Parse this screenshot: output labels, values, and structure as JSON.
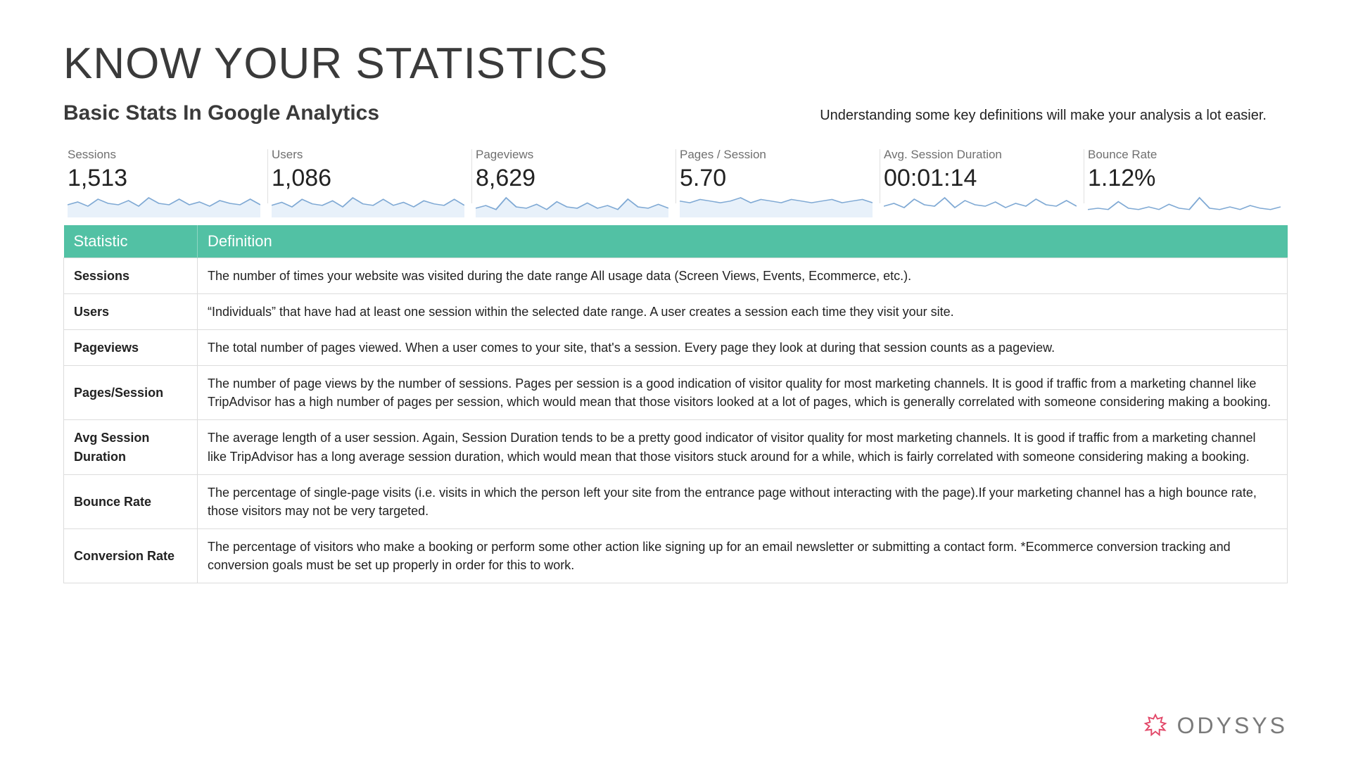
{
  "title": "KNOW YOUR STATISTICS",
  "subtitle": "Basic Stats In Google Analytics",
  "tagline": "Understanding some key definitions will make your analysis a lot easier.",
  "colors": {
    "table_header_bg": "#52c1a4",
    "table_header_text": "#ffffff",
    "border": "#dcdcdc",
    "spark_stroke": "#7fa9d4",
    "spark_fill": "#e8f1fa",
    "brand_icon": "#e24768",
    "brand_text": "#7a7a7a"
  },
  "metrics": [
    {
      "label": "Sessions",
      "value": "1,513",
      "spark": [
        8,
        10,
        7,
        12,
        9,
        8,
        11,
        7,
        13,
        9,
        8,
        12,
        8,
        10,
        7,
        11,
        9,
        8,
        12,
        8
      ],
      "fill": true
    },
    {
      "label": "Users",
      "value": "1,086",
      "spark": [
        7,
        9,
        6,
        11,
        8,
        7,
        10,
        6,
        12,
        8,
        7,
        11,
        7,
        9,
        6,
        10,
        8,
        7,
        11,
        7
      ],
      "fill": true
    },
    {
      "label": "Pageviews",
      "value": "8,629",
      "spark": [
        6,
        8,
        5,
        14,
        7,
        6,
        9,
        5,
        11,
        7,
        6,
        10,
        6,
        8,
        5,
        13,
        7,
        6,
        9,
        6
      ],
      "fill": true
    },
    {
      "label": "Pages / Session",
      "value": "5.70",
      "spark": [
        9,
        8,
        10,
        9,
        8,
        9,
        11,
        8,
        10,
        9,
        8,
        10,
        9,
        8,
        9,
        10,
        8,
        9,
        10,
        8
      ],
      "fill": true
    },
    {
      "label": "Avg. Session Duration",
      "value": "00:01:14",
      "spark": [
        7,
        9,
        6,
        12,
        8,
        7,
        13,
        6,
        11,
        8,
        7,
        10,
        6,
        9,
        7,
        12,
        8,
        7,
        11,
        7
      ],
      "fill": false
    },
    {
      "label": "Bounce Rate",
      "value": "1.12%",
      "spark": [
        5,
        6,
        5,
        11,
        6,
        5,
        7,
        5,
        9,
        6,
        5,
        14,
        6,
        5,
        7,
        5,
        8,
        6,
        5,
        7
      ],
      "fill": false
    }
  ],
  "table": {
    "headers": [
      "Statistic",
      "Definition"
    ],
    "rows": [
      {
        "stat": "Sessions",
        "def": "The number of times your website was visited during the date range All usage data (Screen Views, Events, Ecommerce, etc.)."
      },
      {
        "stat": "Users",
        "def": "“Individuals” that have had at least one session within the selected date range. A user creates a session each time they visit your site."
      },
      {
        "stat": "Pageviews",
        "def": "The total number of pages viewed.  When a user comes to your site, that's a session. Every page they look at during that session counts as a pageview."
      },
      {
        "stat": "Pages/Session",
        "def": "The number of page views by the number of sessions. Pages per session is a good indication of visitor quality for most marketing channels. It is good if traffic from a marketing channel like TripAdvisor has a high number of pages per session, which would mean that those visitors looked at a lot of pages, which is generally correlated with someone considering making a booking."
      },
      {
        "stat": "Avg Session Duration",
        "def": "The average length of a user session. Again, Session Duration tends to be a pretty good indicator of visitor quality for most marketing channels. It is good if traffic from a marketing channel like TripAdvisor has a long average session duration, which would mean that those visitors stuck around for a while, which is fairly correlated with someone considering making a booking."
      },
      {
        "stat": "Bounce Rate",
        "def": "The percentage of single-page visits (i.e. visits in which the person left your site from the entrance page without interacting with the page).If your marketing channel has a high bounce rate, those visitors may not be very targeted."
      },
      {
        "stat": "Conversion Rate",
        "def": "The percentage of visitors who make a booking or perform some other action like signing up for an email newsletter or submitting a contact form. *Ecommerce conversion tracking and conversion goals must be set up properly in order for this to work."
      }
    ]
  },
  "brand": {
    "name": "ODYSYS"
  }
}
